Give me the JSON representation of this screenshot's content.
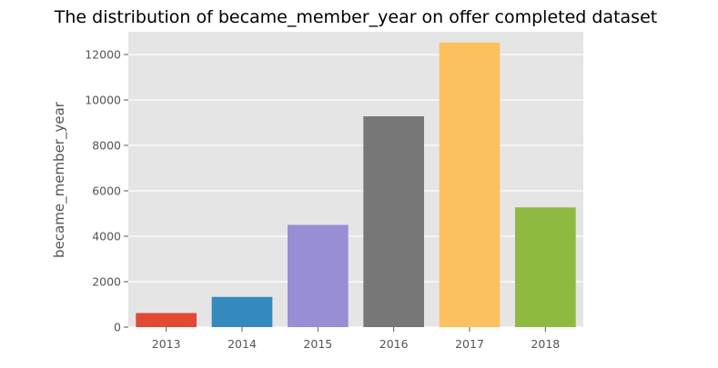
{
  "chart_data": {
    "type": "bar",
    "title": "The distribution of became_member_year on offer completed dataset",
    "xlabel": "",
    "ylabel": "became_member_year",
    "categories": [
      "2013",
      "2014",
      "2015",
      "2016",
      "2017",
      "2018"
    ],
    "values": [
      620,
      1330,
      4500,
      9280,
      12530,
      5270
    ],
    "colors": [
      "#E24A33",
      "#348ABD",
      "#988ED5",
      "#777777",
      "#FBC15E",
      "#8EBA42"
    ],
    "ylim": [
      0,
      13000
    ],
    "yticks": [
      "0",
      "2000",
      "4000",
      "6000",
      "8000",
      "10000",
      "12000"
    ],
    "grid": true,
    "style": "ggplot",
    "background_color": "#E5E5E5"
  }
}
